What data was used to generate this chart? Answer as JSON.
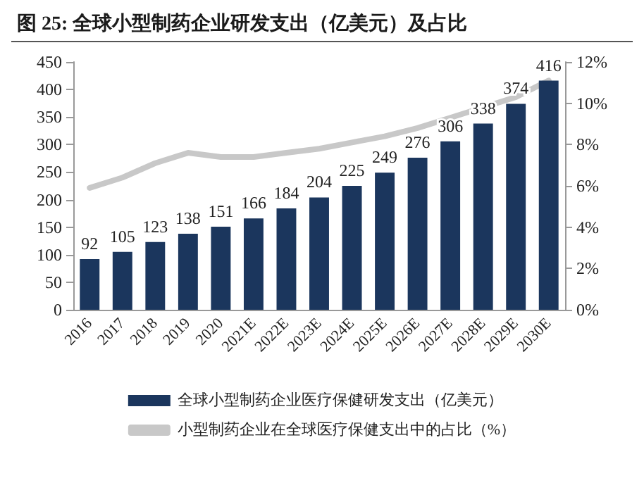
{
  "chart_data": {
    "type": "bar",
    "title": "图 25: 全球小型制药企业研发支出（亿美元）及占比",
    "categories": [
      "2016",
      "2017",
      "2018",
      "2019",
      "2020",
      "2021E",
      "2022E",
      "2023E",
      "2024E",
      "2025E",
      "2026E",
      "2027E",
      "2028E",
      "2029E",
      "2030E"
    ],
    "series": [
      {
        "name": "全球小型制药企业医疗保健研发支出（亿美元）",
        "color": "#1b365d",
        "values": [
          92,
          105,
          123,
          138,
          151,
          166,
          184,
          204,
          225,
          249,
          276,
          306,
          338,
          374,
          416
        ],
        "value_labels": [
          "92",
          "105",
          "123",
          "138",
          "151",
          "166",
          "184",
          "204",
          "225",
          "249",
          "276",
          "306",
          "338",
          "374",
          "416"
        ]
      },
      {
        "name": "小型制药企业在全球医疗保健支出中的占比（%）",
        "type": "line",
        "axis": "y2",
        "color": "#c8c8c8",
        "values": [
          5.9,
          6.4,
          7.1,
          7.6,
          7.4,
          7.4,
          7.6,
          7.8,
          8.1,
          8.4,
          8.8,
          9.3,
          9.8,
          10.3,
          11.1
        ]
      }
    ],
    "ylim": [
      0,
      450
    ],
    "yticks": [
      0,
      50,
      100,
      150,
      200,
      250,
      300,
      350,
      400,
      450
    ],
    "y2lim": [
      0,
      12
    ],
    "y2ticks": [
      {
        "value": 0,
        "label": "0%"
      },
      {
        "value": 2,
        "label": "2%"
      },
      {
        "value": 4,
        "label": "4%"
      },
      {
        "value": 6,
        "label": "6%"
      },
      {
        "value": 8,
        "label": "8%"
      },
      {
        "value": 10,
        "label": "10%"
      },
      {
        "value": 12,
        "label": "12%"
      }
    ],
    "grid": false,
    "legend": "bottom",
    "marker": "none",
    "line_style": "solid"
  }
}
